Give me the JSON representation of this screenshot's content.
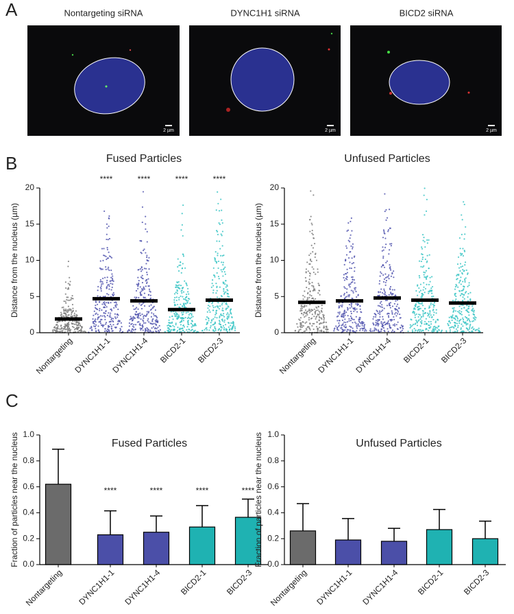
{
  "panel_labels": [
    "A",
    "B",
    "C"
  ],
  "images": {
    "titles": [
      "Nontargeting siRNA",
      "DYNC1H1 siRNA",
      "BICD2 siRNA"
    ],
    "scale_bar": "2 µm"
  },
  "chart_data": [
    {
      "type": "strip",
      "title": "Fused Particles",
      "ylabel": "Distance from the nucleus (µm)",
      "categories": [
        "Nontargeting",
        "DYNC1H1-1",
        "DYNC1H1-4",
        "BICD2-1",
        "BICD2-3"
      ],
      "values": [
        1.9,
        4.7,
        4.4,
        3.2,
        4.5
      ],
      "colors": [
        "#7f7f7f",
        "#5558b0",
        "#5558b0",
        "#3cc6c6",
        "#3cc6c6"
      ],
      "significance": [
        null,
        "****",
        "****",
        "****",
        "****"
      ],
      "ylim": [
        0,
        20
      ],
      "yticks": [
        0,
        5,
        10,
        15,
        20
      ]
    },
    {
      "type": "strip",
      "title": "Unfused Particles",
      "ylabel": "Distance from the nucleus (µm)",
      "categories": [
        "Nontargeting",
        "DYNC1H1-1",
        "DYNC1H1-4",
        "BICD2-1",
        "BICD2-3"
      ],
      "values": [
        4.2,
        4.4,
        4.8,
        4.5,
        4.1
      ],
      "colors": [
        "#7f7f7f",
        "#5558b0",
        "#5558b0",
        "#3cc6c6",
        "#3cc6c6"
      ],
      "ylim": [
        0,
        20
      ],
      "yticks": [
        0,
        5,
        10,
        15,
        20
      ]
    },
    {
      "type": "bar",
      "title": "Fused Particles",
      "ylabel": "Fraction of particles near the nucleus",
      "categories": [
        "Nontargeting",
        "DYNC1H1-1",
        "DYNC1H1-4",
        "BICD2-1",
        "BICD2-3"
      ],
      "values": [
        0.62,
        0.23,
        0.25,
        0.29,
        0.365
      ],
      "errors": [
        0.27,
        0.185,
        0.125,
        0.165,
        0.14
      ],
      "colors": [
        "#6b6b6b",
        "#4b4fa8",
        "#4b4fa8",
        "#1fb2b2",
        "#1fb2b2"
      ],
      "significance": [
        null,
        "****",
        "****",
        "****",
        "****"
      ],
      "ylim": [
        0,
        1.0
      ],
      "yticks": [
        {
          "value": 0,
          "label": "0.0"
        },
        0.2,
        0.4,
        0.6,
        0.8,
        {
          "value": 1.0,
          "label": "1.0"
        }
      ]
    },
    {
      "type": "bar",
      "title": "Unfused Particles",
      "ylabel": "Fraction of particles near the nucleus",
      "categories": [
        "Nontargeting",
        "DYNC1H1-1",
        "DYNC1H1-4",
        "BICD2-1",
        "BICD2-3"
      ],
      "values": [
        0.26,
        0.19,
        0.18,
        0.27,
        0.2
      ],
      "errors": [
        0.21,
        0.165,
        0.1,
        0.155,
        0.135
      ],
      "colors": [
        "#6b6b6b",
        "#4b4fa8",
        "#4b4fa8",
        "#1fb2b2",
        "#1fb2b2"
      ],
      "ylim": [
        0,
        1.0
      ],
      "yticks": [
        {
          "value": 0,
          "label": "0.0"
        },
        0.2,
        0.4,
        0.6,
        0.8,
        {
          "value": 1.0,
          "label": "1.0"
        }
      ]
    }
  ]
}
